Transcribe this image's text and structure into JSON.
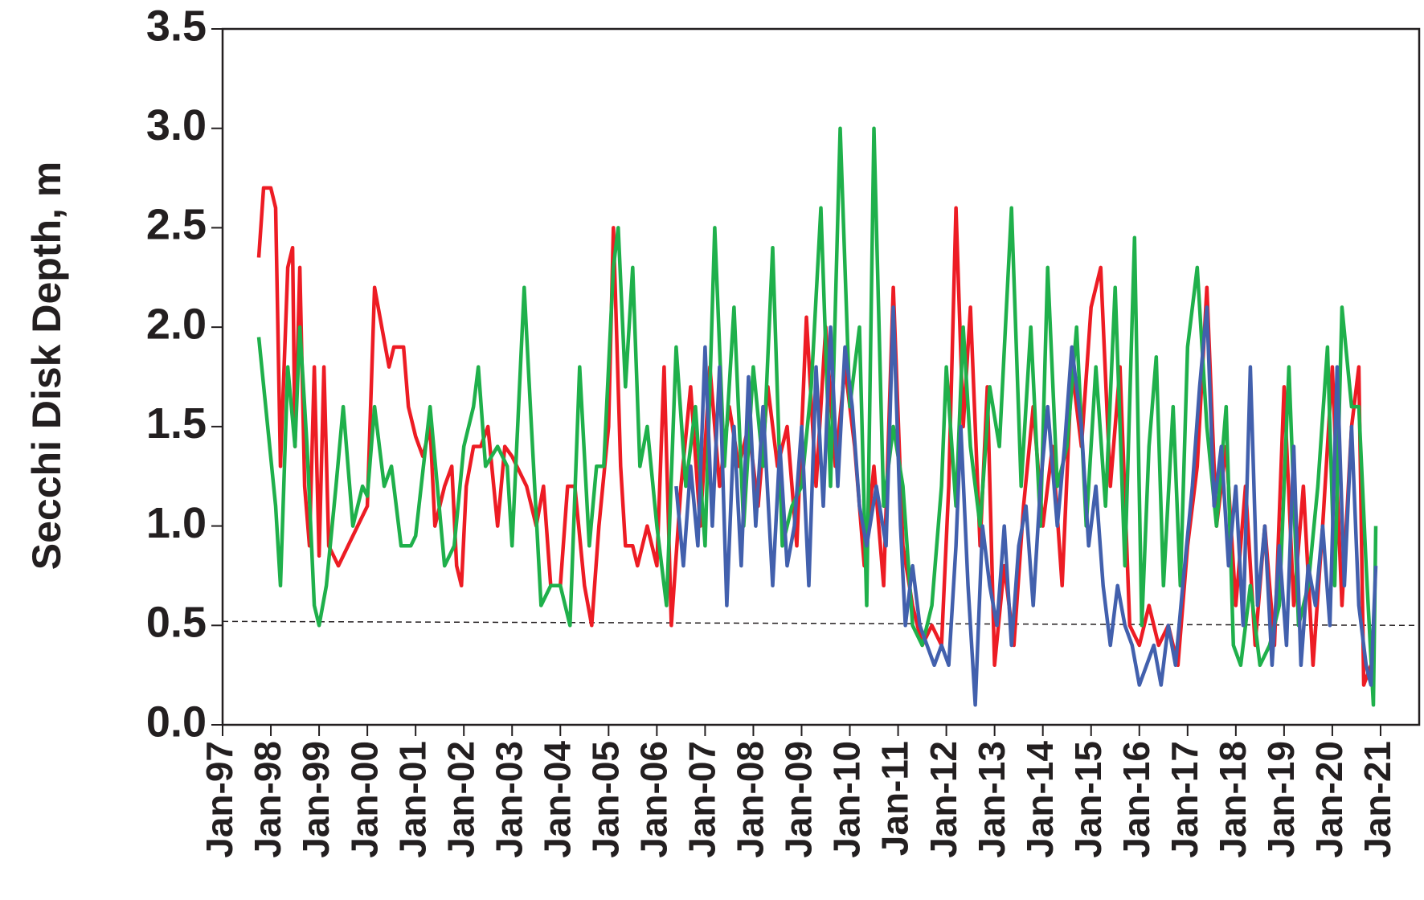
{
  "chart_data": {
    "type": "line",
    "y_label": "Secchi Disk Depth, m",
    "xlim": [
      1997,
      2021.8
    ],
    "xticks": [
      {
        "value": 1997,
        "label": "Jan-97"
      },
      {
        "value": 1998,
        "label": "Jan-98"
      },
      {
        "value": 1999,
        "label": "Jan-99"
      },
      {
        "value": 2000,
        "label": "Jan-00"
      },
      {
        "value": 2001,
        "label": "Jan-01"
      },
      {
        "value": 2002,
        "label": "Jan-02"
      },
      {
        "value": 2003,
        "label": "Jan-03"
      },
      {
        "value": 2004,
        "label": "Jan-04"
      },
      {
        "value": 2005,
        "label": "Jan-05"
      },
      {
        "value": 2006,
        "label": "Jan-06"
      },
      {
        "value": 2007,
        "label": "Jan-07"
      },
      {
        "value": 2008,
        "label": "Jan-08"
      },
      {
        "value": 2009,
        "label": "Jan-09"
      },
      {
        "value": 2010,
        "label": "Jan-10"
      },
      {
        "value": 2011,
        "label": "Jan-11"
      },
      {
        "value": 2012,
        "label": "Jan-12"
      },
      {
        "value": 2013,
        "label": "Jan-13"
      },
      {
        "value": 2014,
        "label": "Jan-14"
      },
      {
        "value": 2015,
        "label": "Jan-15"
      },
      {
        "value": 2016,
        "label": "Jan-16"
      },
      {
        "value": 2017,
        "label": "Jan-17"
      },
      {
        "value": 2018,
        "label": "Jan-18"
      },
      {
        "value": 2019,
        "label": "Jan-19"
      },
      {
        "value": 2020,
        "label": "Jan-20"
      },
      {
        "value": 2021,
        "label": "Jan-21"
      }
    ],
    "ylim": [
      0,
      3.5
    ],
    "yticks": [
      {
        "value": 0,
        "label": "0.0"
      },
      0.5,
      {
        "value": 1,
        "label": "1.0"
      },
      1.5,
      {
        "value": 2,
        "label": "2.0"
      },
      2.5,
      {
        "value": 3,
        "label": "3.0"
      },
      3.5
    ],
    "reference_line": {
      "x": [
        1997,
        2021.8
      ],
      "values": [
        0.52,
        0.5
      ],
      "style": "dashed",
      "color": "#231f20"
    },
    "series": [
      {
        "color": "#ed1c24",
        "x": [
          1997.75,
          1997.85,
          1998.0,
          1998.1,
          1998.2,
          1998.35,
          1998.45,
          1998.5,
          1998.6,
          1998.7,
          1998.8,
          1998.9,
          1999.0,
          1999.1,
          1999.2,
          1999.4,
          1999.7,
          2000.0,
          2000.15,
          2000.3,
          2000.45,
          2000.55,
          2000.75,
          2000.85,
          2001.0,
          2001.15,
          2001.3,
          2001.4,
          2001.6,
          2001.75,
          2001.85,
          2001.95,
          2002.05,
          2002.2,
          2002.35,
          2002.5,
          2002.7,
          2002.85,
          2003.0,
          2003.3,
          2003.5,
          2003.65,
          2003.8,
          2004.0,
          2004.15,
          2004.3,
          2004.5,
          2004.65,
          2004.8,
          2005.0,
          2005.1,
          2005.25,
          2005.35,
          2005.5,
          2005.6,
          2005.8,
          2006.0,
          2006.15,
          2006.3,
          2006.5,
          2006.7,
          2006.9,
          2007.1,
          2007.3,
          2007.5,
          2007.7,
          2007.9,
          2008.1,
          2008.3,
          2008.5,
          2008.7,
          2008.9,
          2009.1,
          2009.3,
          2009.5,
          2009.7,
          2009.9,
          2010.1,
          2010.3,
          2010.5,
          2010.7,
          2010.9,
          2011.1,
          2011.3,
          2011.5,
          2011.7,
          2011.9,
          2012.05,
          2012.2,
          2012.35,
          2012.5,
          2012.7,
          2012.85,
          2013.0,
          2013.2,
          2013.4,
          2013.6,
          2013.8,
          2014.0,
          2014.2,
          2014.4,
          2014.6,
          2014.8,
          2015.0,
          2015.2,
          2015.4,
          2015.6,
          2015.8,
          2016.0,
          2016.2,
          2016.4,
          2016.6,
          2016.8,
          2017.0,
          2017.2,
          2017.4,
          2017.6,
          2017.8,
          2018.0,
          2018.2,
          2018.4,
          2018.6,
          2018.8,
          2019.0,
          2019.2,
          2019.4,
          2019.6,
          2019.8,
          2020.0,
          2020.2,
          2020.4,
          2020.55,
          2020.65,
          2020.8
        ],
        "values": [
          2.35,
          2.7,
          2.7,
          2.6,
          1.3,
          2.3,
          2.4,
          1.4,
          2.3,
          1.2,
          0.9,
          1.8,
          0.85,
          1.8,
          0.9,
          0.8,
          0.95,
          1.1,
          2.2,
          2.0,
          1.8,
          1.9,
          1.9,
          1.6,
          1.45,
          1.35,
          1.5,
          1.0,
          1.2,
          1.3,
          0.8,
          0.7,
          1.2,
          1.4,
          1.4,
          1.5,
          1.0,
          1.4,
          1.35,
          1.2,
          1.0,
          1.2,
          0.7,
          0.7,
          1.2,
          1.2,
          0.7,
          0.5,
          1.0,
          1.5,
          2.5,
          1.3,
          0.9,
          0.9,
          0.8,
          1.0,
          0.8,
          1.8,
          0.5,
          1.2,
          1.7,
          1.0,
          1.8,
          1.2,
          1.6,
          1.3,
          1.5,
          1.1,
          1.7,
          1.3,
          1.5,
          0.9,
          2.05,
          1.2,
          2.0,
          1.3,
          1.8,
          1.4,
          0.8,
          1.3,
          0.7,
          2.2,
          0.9,
          0.6,
          0.4,
          0.5,
          0.4,
          1.2,
          2.6,
          1.5,
          2.1,
          0.9,
          1.7,
          0.3,
          0.8,
          0.4,
          1.1,
          1.6,
          1.0,
          1.4,
          0.7,
          1.8,
          1.4,
          2.1,
          2.3,
          1.2,
          1.8,
          0.5,
          0.4,
          0.6,
          0.4,
          0.5,
          0.3,
          0.9,
          1.3,
          2.2,
          1.0,
          1.4,
          0.6,
          1.2,
          0.4,
          1.0,
          0.4,
          1.7,
          0.6,
          1.2,
          0.3,
          1.0,
          1.8,
          0.6,
          1.5,
          1.8,
          0.2,
          0.3
        ]
      },
      {
        "color": "#1fb04b",
        "x": [
          1997.75,
          1998.1,
          1998.2,
          1998.35,
          1998.5,
          1998.6,
          1998.75,
          1998.9,
          1999.0,
          1999.15,
          1999.35,
          1999.5,
          1999.7,
          1999.9,
          2000.0,
          2000.15,
          2000.35,
          2000.5,
          2000.7,
          2000.9,
          2001.0,
          2001.3,
          2001.45,
          2001.6,
          2001.8,
          2002.0,
          2002.2,
          2002.3,
          2002.45,
          2002.7,
          2002.9,
          2003.0,
          2003.25,
          2003.4,
          2003.6,
          2003.8,
          2004.0,
          2004.2,
          2004.4,
          2004.6,
          2004.75,
          2004.9,
          2005.1,
          2005.2,
          2005.35,
          2005.5,
          2005.65,
          2005.8,
          2006.0,
          2006.2,
          2006.4,
          2006.6,
          2006.8,
          2007.0,
          2007.2,
          2007.4,
          2007.6,
          2007.8,
          2008.0,
          2008.2,
          2008.4,
          2008.6,
          2008.8,
          2009.0,
          2009.2,
          2009.4,
          2009.6,
          2009.8,
          2010.0,
          2010.2,
          2010.35,
          2010.5,
          2010.7,
          2010.9,
          2011.1,
          2011.3,
          2011.5,
          2011.7,
          2011.9,
          2012.0,
          2012.2,
          2012.35,
          2012.5,
          2012.7,
          2012.9,
          2013.1,
          2013.35,
          2013.55,
          2013.75,
          2013.95,
          2014.1,
          2014.3,
          2014.5,
          2014.7,
          2014.9,
          2015.1,
          2015.3,
          2015.5,
          2015.7,
          2015.9,
          2016.05,
          2016.2,
          2016.35,
          2016.5,
          2016.7,
          2016.85,
          2017.0,
          2017.2,
          2017.4,
          2017.6,
          2017.8,
          2017.95,
          2018.1,
          2018.3,
          2018.5,
          2018.7,
          2018.9,
          2019.1,
          2019.3,
          2019.5,
          2019.7,
          2019.9,
          2020.05,
          2020.2,
          2020.4,
          2020.55,
          2020.7,
          2020.85,
          2020.9
        ],
        "values": [
          1.95,
          1.1,
          0.7,
          1.8,
          1.4,
          2.0,
          1.4,
          0.6,
          0.5,
          0.7,
          1.2,
          1.6,
          1.0,
          1.2,
          1.15,
          1.6,
          1.2,
          1.3,
          0.9,
          0.9,
          0.95,
          1.6,
          1.2,
          0.8,
          0.9,
          1.4,
          1.6,
          1.8,
          1.3,
          1.4,
          1.3,
          0.9,
          2.2,
          1.5,
          0.6,
          0.7,
          0.7,
          0.5,
          1.8,
          0.9,
          1.3,
          1.3,
          2.3,
          2.5,
          1.7,
          2.3,
          1.3,
          1.5,
          1.0,
          0.6,
          1.9,
          1.2,
          1.6,
          0.9,
          2.5,
          1.3,
          2.1,
          1.0,
          1.8,
          1.3,
          2.4,
          0.9,
          1.1,
          1.2,
          1.7,
          2.6,
          1.2,
          3.0,
          1.6,
          2.0,
          0.6,
          3.0,
          1.1,
          1.5,
          1.2,
          0.5,
          0.4,
          0.6,
          1.2,
          1.8,
          1.1,
          2.0,
          1.4,
          1.0,
          1.7,
          1.4,
          2.6,
          1.2,
          2.0,
          1.0,
          2.3,
          1.2,
          1.4,
          2.0,
          1.0,
          1.8,
          1.1,
          2.2,
          0.8,
          2.45,
          0.5,
          1.4,
          1.85,
          0.7,
          1.6,
          0.7,
          1.9,
          2.3,
          1.5,
          1.0,
          1.6,
          0.4,
          0.3,
          0.7,
          0.3,
          0.4,
          0.6,
          1.8,
          0.5,
          0.7,
          1.2,
          1.9,
          0.7,
          2.1,
          1.6,
          1.6,
          0.8,
          0.1,
          1.0
        ]
      },
      {
        "color": "#4260ad",
        "x": [
          2006.4,
          2006.55,
          2006.7,
          2006.85,
          2007.0,
          2007.15,
          2007.3,
          2007.45,
          2007.6,
          2007.75,
          2007.9,
          2008.05,
          2008.2,
          2008.4,
          2008.55,
          2008.7,
          2008.85,
          2009.0,
          2009.15,
          2009.3,
          2009.45,
          2009.6,
          2009.75,
          2009.9,
          2010.05,
          2010.2,
          2010.35,
          2010.55,
          2010.75,
          2010.9,
          2011.05,
          2011.15,
          2011.3,
          2011.45,
          2011.6,
          2011.75,
          2011.9,
          2012.05,
          2012.2,
          2012.3,
          2012.45,
          2012.6,
          2012.75,
          2012.9,
          2013.05,
          2013.2,
          2013.35,
          2013.5,
          2013.65,
          2013.8,
          2013.95,
          2014.1,
          2014.3,
          2014.45,
          2014.6,
          2014.8,
          2014.95,
          2015.1,
          2015.25,
          2015.4,
          2015.55,
          2015.7,
          2015.85,
          2016.0,
          2016.15,
          2016.3,
          2016.45,
          2016.6,
          2016.75,
          2016.9,
          2017.1,
          2017.25,
          2017.4,
          2017.55,
          2017.7,
          2017.85,
          2018.0,
          2018.15,
          2018.3,
          2018.45,
          2018.6,
          2018.75,
          2018.9,
          2019.05,
          2019.2,
          2019.35,
          2019.5,
          2019.65,
          2019.8,
          2019.95,
          2020.1,
          2020.25,
          2020.4,
          2020.55,
          2020.7,
          2020.8,
          2020.9
        ],
        "values": [
          1.2,
          0.8,
          1.3,
          0.9,
          1.9,
          1.0,
          1.8,
          0.6,
          1.5,
          0.8,
          1.75,
          1.0,
          1.6,
          0.7,
          1.4,
          0.8,
          1.0,
          1.5,
          0.7,
          1.8,
          1.1,
          2.0,
          1.2,
          1.9,
          1.6,
          1.1,
          0.9,
          1.2,
          0.9,
          2.1,
          1.0,
          0.5,
          0.8,
          0.5,
          0.4,
          0.3,
          0.4,
          0.3,
          0.9,
          1.5,
          0.7,
          0.1,
          1.0,
          0.7,
          0.5,
          1.0,
          0.4,
          0.9,
          1.1,
          0.6,
          1.2,
          1.6,
          1.0,
          1.4,
          1.9,
          1.5,
          0.9,
          1.2,
          0.7,
          0.4,
          0.7,
          0.5,
          0.4,
          0.2,
          0.3,
          0.4,
          0.2,
          0.5,
          0.3,
          0.7,
          1.2,
          1.7,
          2.1,
          1.1,
          1.4,
          0.8,
          1.2,
          0.5,
          1.8,
          0.6,
          1.0,
          0.3,
          0.9,
          0.4,
          1.4,
          0.3,
          0.8,
          0.6,
          1.0,
          0.5,
          1.8,
          0.7,
          1.5,
          0.6,
          0.3,
          0.2,
          0.8
        ]
      }
    ]
  }
}
